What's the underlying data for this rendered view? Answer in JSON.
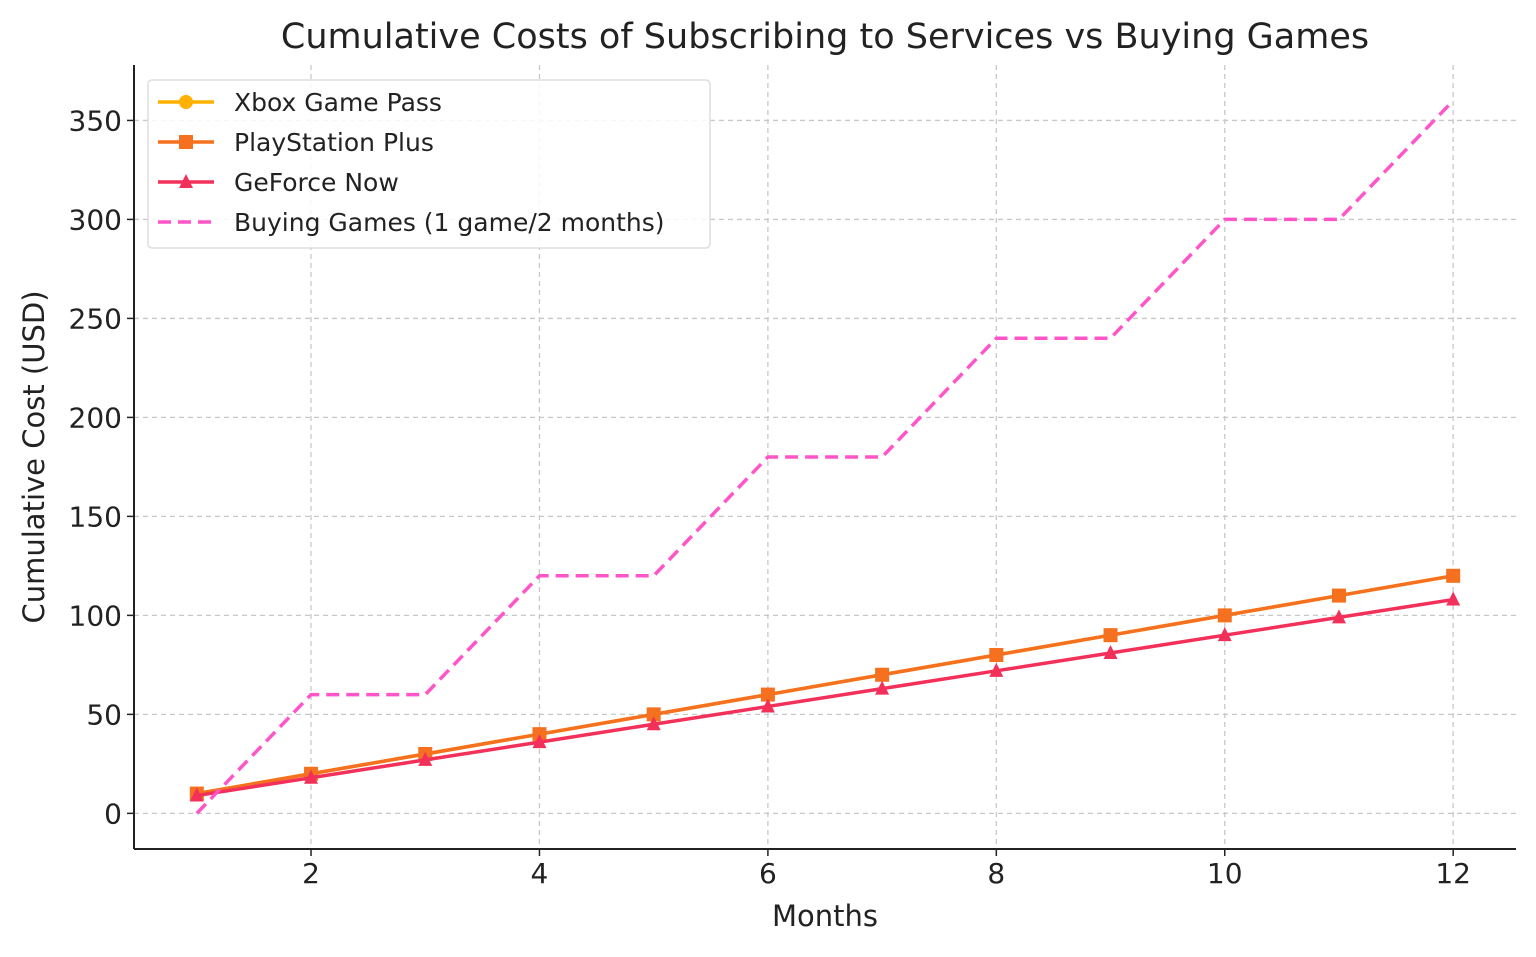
{
  "chart_data": {
    "type": "line",
    "title": "Cumulative Costs of Subscribing to Services vs Buying Games",
    "xlabel": "Months",
    "ylabel": "Cumulative Cost (USD)",
    "x": [
      1,
      2,
      3,
      4,
      5,
      6,
      7,
      8,
      9,
      10,
      11,
      12
    ],
    "xlim": [
      0.45,
      12.55
    ],
    "ylim": [
      -18,
      378
    ],
    "xticks": [
      2,
      4,
      6,
      8,
      10,
      12
    ],
    "yticks": [
      0,
      50,
      100,
      150,
      200,
      250,
      300,
      350
    ],
    "grid": true,
    "legend_position": "top-left",
    "series": [
      {
        "name": "Xbox Game Pass",
        "color": "#FFB000",
        "marker": "circle",
        "dash": false,
        "values": [
          10,
          20,
          30,
          40,
          50,
          60,
          70,
          80,
          90,
          100,
          110,
          120
        ]
      },
      {
        "name": "PlayStation Plus",
        "color": "#F5701F",
        "marker": "square",
        "dash": false,
        "values": [
          10,
          20,
          30,
          40,
          50,
          60,
          70,
          80,
          90,
          100,
          110,
          120
        ]
      },
      {
        "name": "GeForce Now",
        "color": "#F2305A",
        "marker": "triangle",
        "dash": false,
        "values": [
          9,
          18,
          27,
          36,
          45,
          54,
          63,
          72,
          81,
          90,
          99,
          108
        ]
      },
      {
        "name": "Buying Games (1 game/2 months)",
        "color": "#FF55C8",
        "marker": "none",
        "dash": true,
        "values": [
          0,
          60,
          60,
          120,
          120,
          180,
          180,
          240,
          240,
          300,
          300,
          360
        ]
      }
    ]
  }
}
